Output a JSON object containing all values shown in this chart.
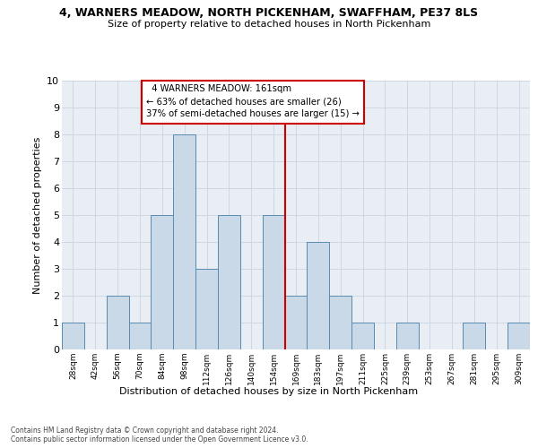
{
  "title_line1": "4, WARNERS MEADOW, NORTH PICKENHAM, SWAFFHAM, PE37 8LS",
  "title_line2": "Size of property relative to detached houses in North Pickenham",
  "xlabel": "Distribution of detached houses by size in North Pickenham",
  "ylabel": "Number of detached properties",
  "footnote": "Contains HM Land Registry data © Crown copyright and database right 2024.\nContains public sector information licensed under the Open Government Licence v3.0.",
  "bin_labels": [
    "28sqm",
    "42sqm",
    "56sqm",
    "70sqm",
    "84sqm",
    "98sqm",
    "112sqm",
    "126sqm",
    "140sqm",
    "154sqm",
    "169sqm",
    "183sqm",
    "197sqm",
    "211sqm",
    "225sqm",
    "239sqm",
    "253sqm",
    "267sqm",
    "281sqm",
    "295sqm",
    "309sqm"
  ],
  "bar_heights": [
    1,
    0,
    2,
    1,
    5,
    8,
    3,
    5,
    0,
    5,
    2,
    4,
    2,
    1,
    0,
    1,
    0,
    0,
    1,
    0,
    1
  ],
  "bar_color": "#c9d9e8",
  "bar_edge_color": "#5a8ab0",
  "reference_line_color": "#cc0000",
  "annotation_text": "  4 WARNERS MEADOW: 161sqm  \n← 63% of detached houses are smaller (26)\n37% of semi-detached houses are larger (15) →",
  "annotation_box_color": "white",
  "annotation_box_edge_color": "#cc0000",
  "ylim": [
    0,
    10
  ],
  "yticks": [
    0,
    1,
    2,
    3,
    4,
    5,
    6,
    7,
    8,
    9,
    10
  ],
  "grid_color": "#c8d4e0",
  "bg_color": "#e8eef4"
}
